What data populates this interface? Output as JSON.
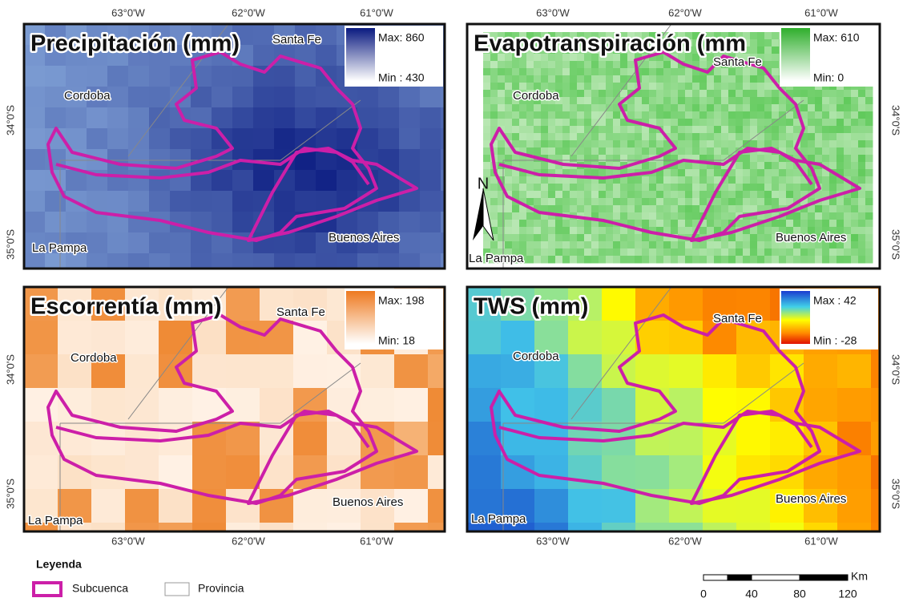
{
  "axes": {
    "longitudes": [
      "63°0'W",
      "62°0'W",
      "61°0'W"
    ],
    "latitudes": [
      "34°0'S",
      "35°0'S"
    ]
  },
  "panels": [
    {
      "title": "Precipitación (mm)",
      "max": "Max: 860",
      "min": "Min : 430",
      "places": [
        "Santa Fe",
        "Cordoba",
        "La Pampa",
        "Buenos Aires"
      ]
    },
    {
      "title": "Evapotranspiración (mm",
      "max": "Max: 610",
      "min": "Min: 0",
      "places": [
        "Santa Fe",
        "Cordoba",
        "La Pampa",
        "Buenos Aires"
      ],
      "north": "N"
    },
    {
      "title": "Escorrentía (mm)",
      "max": "Max: 198",
      "min": "Min: 18",
      "places": [
        "Santa Fe",
        "Cordoba",
        "La Pampa",
        "Buenos Aires"
      ]
    },
    {
      "title": "TWS (mm)",
      "max": "Max : 42",
      "min": "Min : -28",
      "places": [
        "Santa Fe",
        "Cordoba",
        "La Pampa",
        "Buenos Aires"
      ]
    }
  ],
  "legend": {
    "title": "Leyenda",
    "items": [
      "Subcuenca",
      "Provincia"
    ]
  },
  "scale_bar": {
    "ticks": [
      "0",
      "40",
      "80",
      "120"
    ],
    "unit": "Km"
  }
}
